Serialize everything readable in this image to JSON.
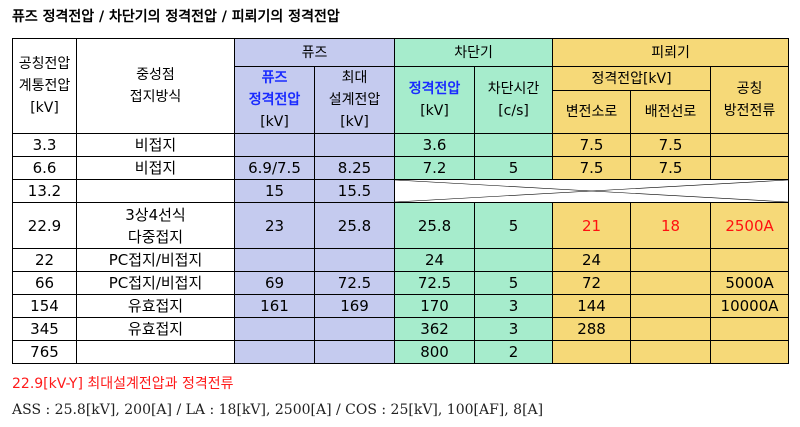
{
  "title": "퓨즈 정격전압 / 차단기의 정격전압 / 피뢰기의 정격전압",
  "headers": {
    "col1": [
      "공칭전압",
      "계통전압",
      "[kV]"
    ],
    "col2": [
      "중성점",
      "접지방식"
    ],
    "fuse_group": "퓨즈",
    "fuse_rated": [
      "퓨즈",
      "정격전압",
      "[kV]"
    ],
    "fuse_max": [
      "최대",
      "설계전압",
      "[kV]"
    ],
    "breaker_group": "차단기",
    "breaker_rated": [
      "정격전압",
      "[kV]"
    ],
    "breaker_time": [
      "차단시간",
      "[c/s]"
    ],
    "arrester_group": "피뢰기",
    "arrester_rated": "정격전압[kV]",
    "arrester_sub": "변전소로",
    "arrester_dist": "배전선로",
    "arrester_current": [
      "공칭",
      "방전전류"
    ]
  },
  "rows": [
    {
      "v": "3.3",
      "g": "비접지",
      "fr": "",
      "fm": "",
      "br": "3.6",
      "bt": "",
      "as": "7.5",
      "ad": "7.5",
      "ac": ""
    },
    {
      "v": "6.6",
      "g": "비접지",
      "fr": "6.9/7.5",
      "fm": "8.25",
      "br": "7.2",
      "bt": "5",
      "as": "7.5",
      "ad": "7.5",
      "ac": ""
    },
    {
      "v": "13.2",
      "g": "",
      "fr": "15",
      "fm": "15.5"
    },
    {
      "v": "22.9",
      "g": "3상4선식 다중접지",
      "fr": "23",
      "fm": "25.8",
      "br": "25.8",
      "bt": "5",
      "as": "21",
      "ad": "18",
      "ac": "2500A"
    },
    {
      "v": "22",
      "g": "PC접지/비접지",
      "fr": "",
      "fm": "",
      "br": "24",
      "bt": "",
      "as": "24",
      "ad": "",
      "ac": ""
    },
    {
      "v": "66",
      "g": "PC접지/비접지",
      "fr": "69",
      "fm": "72.5",
      "br": "72.5",
      "bt": "5",
      "as": "72",
      "ad": "",
      "ac": "5000A"
    },
    {
      "v": "154",
      "g": "유효접지",
      "fr": "161",
      "fm": "169",
      "br": "170",
      "bt": "3",
      "as": "144",
      "ad": "",
      "ac": "10000A"
    },
    {
      "v": "345",
      "g": "유효접지",
      "fr": "",
      "fm": "",
      "br": "362",
      "bt": "3",
      "as": "288",
      "ad": "",
      "ac": ""
    },
    {
      "v": "765",
      "g": "",
      "fr": "",
      "fm": "",
      "br": "800",
      "bt": "2",
      "as": "",
      "ad": "",
      "ac": ""
    }
  ],
  "row4_ground": [
    "3상4선식",
    "다중접지"
  ],
  "note_red": "22.9[kV-Y]  최대설계전압과  정격전류",
  "note_black": "ASS : 25.8[kV], 200[A] / LA : 18[kV], 2500[A] / COS : 25[kV], 100[AF], 8[A]",
  "colors": {
    "fuse": "#c5cbef",
    "breaker": "#a6eccc",
    "arrester": "#f6d978",
    "highlight": "#ff1010",
    "header_blue": "#1a2bff"
  }
}
